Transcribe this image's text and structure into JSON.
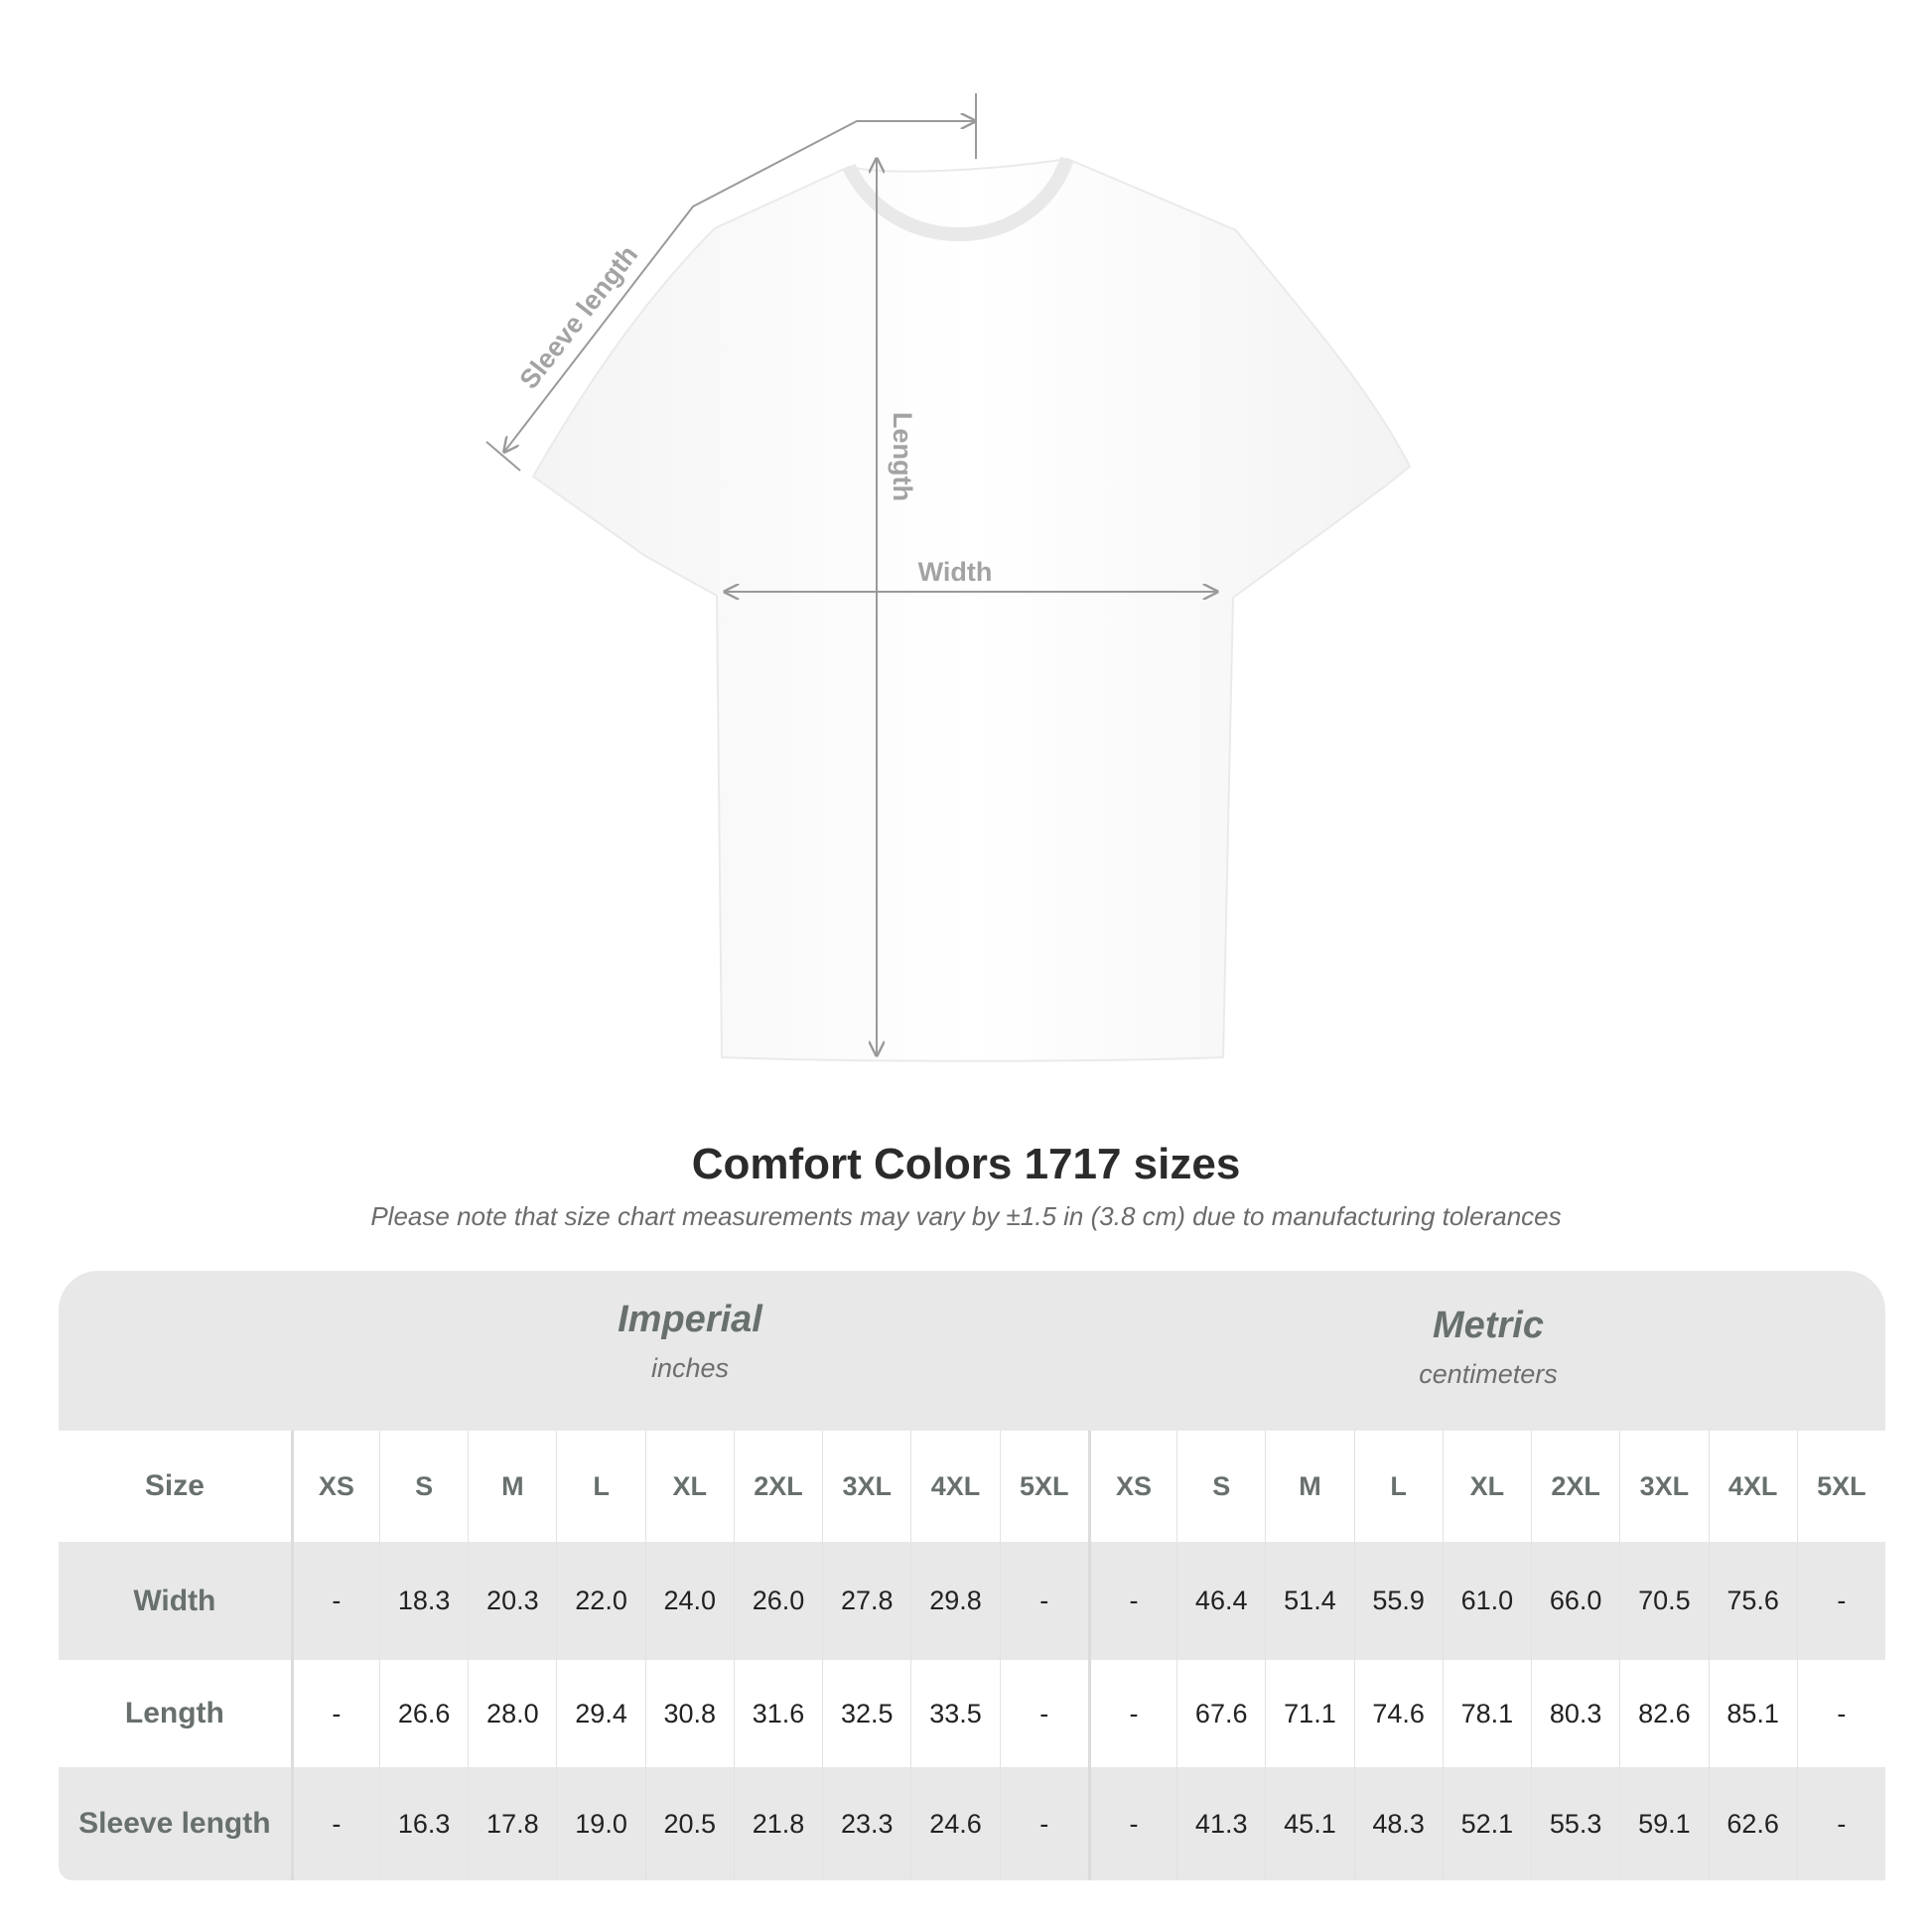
{
  "diagram": {
    "labels": {
      "sleeve": "Sleeve length",
      "length": "Length",
      "width": "Width"
    }
  },
  "title": "Comfort Colors 1717 sizes",
  "note": "Please note that size chart measurements may vary by ±1.5 in (3.8 cm) due to manufacturing tolerances",
  "table": {
    "imperial": {
      "name": "Imperial",
      "unit": "inches"
    },
    "metric": {
      "name": "Metric",
      "unit": "centimeters"
    },
    "size_label": "Size",
    "sizes": [
      "XS",
      "S",
      "M",
      "L",
      "XL",
      "2XL",
      "3XL",
      "4XL",
      "5XL"
    ],
    "rows": [
      {
        "label": "Width",
        "imperial": [
          "-",
          "18.3",
          "20.3",
          "22.0",
          "24.0",
          "26.0",
          "27.8",
          "29.8",
          "-"
        ],
        "metric": [
          "-",
          "46.4",
          "51.4",
          "55.9",
          "61.0",
          "66.0",
          "70.5",
          "75.6",
          "-"
        ]
      },
      {
        "label": "Length",
        "imperial": [
          "-",
          "26.6",
          "28.0",
          "29.4",
          "30.8",
          "31.6",
          "32.5",
          "33.5",
          "-"
        ],
        "metric": [
          "-",
          "67.6",
          "71.1",
          "74.6",
          "78.1",
          "80.3",
          "82.6",
          "85.1",
          "-"
        ]
      },
      {
        "label": "Sleeve length",
        "imperial": [
          "-",
          "16.3",
          "17.8",
          "19.0",
          "20.5",
          "21.8",
          "23.3",
          "24.6",
          "-"
        ],
        "metric": [
          "-",
          "41.3",
          "45.1",
          "48.3",
          "52.1",
          "55.3",
          "59.1",
          "62.6",
          "-"
        ]
      }
    ]
  }
}
